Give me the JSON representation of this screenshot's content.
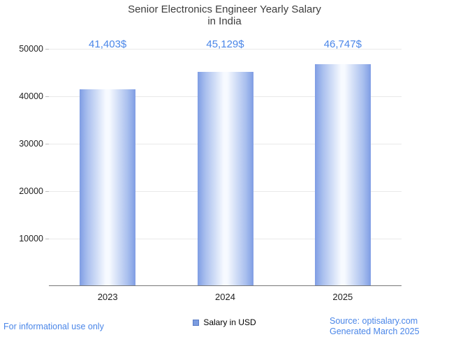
{
  "chart": {
    "title": "Senior Electronics Engineer Yearly Salary",
    "subtitle": "in India",
    "legend_label": "Salary in USD"
  },
  "chart_data": {
    "type": "bar",
    "title": "Senior Electronics Engineer Yearly Salary in India",
    "categories": [
      "2023",
      "2024",
      "2025"
    ],
    "series": [
      {
        "name": "Salary in USD",
        "values": [
          41403,
          45129,
          46747
        ]
      }
    ],
    "value_labels": [
      "41,403$",
      "45,129$",
      "46,747$"
    ],
    "xlabel": "",
    "ylabel": "",
    "ylim": [
      0,
      50000
    ],
    "yticks": [
      10000,
      20000,
      30000,
      40000,
      50000
    ],
    "grid": true,
    "legend_position": "bottom"
  },
  "footer": {
    "disclaimer": "For informational use only",
    "source": "Source: optisalary.com",
    "generated": "Generated March 2025"
  },
  "colors": {
    "accent_blue": "#4a86e8",
    "bar_edge": "#7f9de4",
    "bar_center": "#f7faff",
    "title_gray": "#3d3d3d",
    "gridline": "#e9e9e9"
  }
}
